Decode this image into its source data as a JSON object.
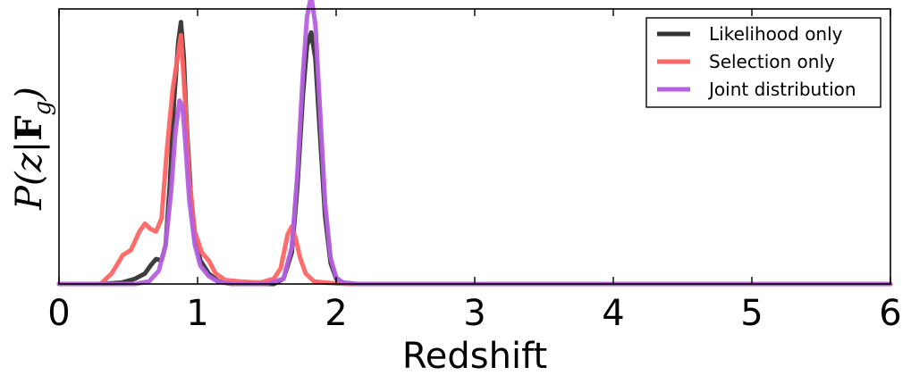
{
  "chart_data": {
    "type": "line",
    "xlabel": "Redshift",
    "ylabel": "P(z|F_g)",
    "xlim": [
      0,
      6
    ],
    "ylim": [
      0,
      1.05
    ],
    "xticks": [
      "0",
      "1",
      "2",
      "3",
      "4",
      "5",
      "6"
    ],
    "yticks_visible": false,
    "legend_position": "top-right",
    "series": [
      {
        "name": "Likelihood only",
        "color": "#333333",
        "x": [
          0,
          0.3,
          0.45,
          0.55,
          0.62,
          0.66,
          0.7,
          0.74,
          0.77,
          0.8,
          0.83,
          0.86,
          0.88,
          0.9,
          0.92,
          0.95,
          0.98,
          1.02,
          1.08,
          1.15,
          1.25,
          1.4,
          1.55,
          1.62,
          1.68,
          1.72,
          1.76,
          1.79,
          1.82,
          1.85,
          1.88,
          1.92,
          1.96,
          2.0,
          2.05,
          2.15,
          3,
          4,
          5,
          6
        ],
        "y": [
          0,
          0,
          0.005,
          0.02,
          0.04,
          0.07,
          0.095,
          0.09,
          0.15,
          0.38,
          0.7,
          0.92,
          1.0,
          0.87,
          0.62,
          0.35,
          0.18,
          0.09,
          0.04,
          0.01,
          0,
          0,
          0,
          0.02,
          0.12,
          0.37,
          0.72,
          0.91,
          0.96,
          0.86,
          0.6,
          0.26,
          0.08,
          0.02,
          0.005,
          0,
          0,
          0,
          0,
          0
        ]
      },
      {
        "name": "Selection only",
        "color": "#ff6464",
        "x": [
          0,
          0.3,
          0.38,
          0.46,
          0.52,
          0.58,
          0.62,
          0.66,
          0.7,
          0.74,
          0.78,
          0.82,
          0.86,
          0.88,
          0.91,
          0.94,
          0.98,
          1.03,
          1.08,
          1.13,
          1.2,
          1.3,
          1.45,
          1.55,
          1.6,
          1.65,
          1.68,
          1.71,
          1.74,
          1.78,
          1.84,
          1.92,
          2.0,
          2.1,
          3,
          4,
          5,
          6
        ],
        "y": [
          0,
          0,
          0.04,
          0.11,
          0.13,
          0.2,
          0.23,
          0.21,
          0.2,
          0.25,
          0.52,
          0.74,
          0.88,
          0.95,
          0.7,
          0.4,
          0.2,
          0.12,
          0.09,
          0.04,
          0.015,
          0.01,
          0.005,
          0.02,
          0.06,
          0.19,
          0.22,
          0.17,
          0.1,
          0.04,
          0.01,
          0.005,
          0.002,
          0,
          0,
          0,
          0,
          0
        ]
      },
      {
        "name": "Joint distribution",
        "color": "#b65fe0",
        "x": [
          0,
          0.55,
          0.65,
          0.72,
          0.77,
          0.81,
          0.84,
          0.87,
          0.89,
          0.91,
          0.94,
          0.98,
          1.02,
          1.08,
          1.15,
          1.25,
          1.5,
          1.62,
          1.68,
          1.72,
          1.76,
          1.79,
          1.82,
          1.85,
          1.88,
          1.92,
          1.96,
          2.0,
          2.05,
          2.15,
          3,
          4,
          5,
          6
        ],
        "y": [
          0,
          0,
          0.01,
          0.05,
          0.15,
          0.36,
          0.58,
          0.7,
          0.68,
          0.55,
          0.32,
          0.15,
          0.07,
          0.03,
          0.008,
          0,
          0,
          0.02,
          0.14,
          0.42,
          0.8,
          1.02,
          1.1,
          0.99,
          0.7,
          0.31,
          0.1,
          0.025,
          0.005,
          0,
          0,
          0,
          0,
          0
        ]
      }
    ]
  }
}
